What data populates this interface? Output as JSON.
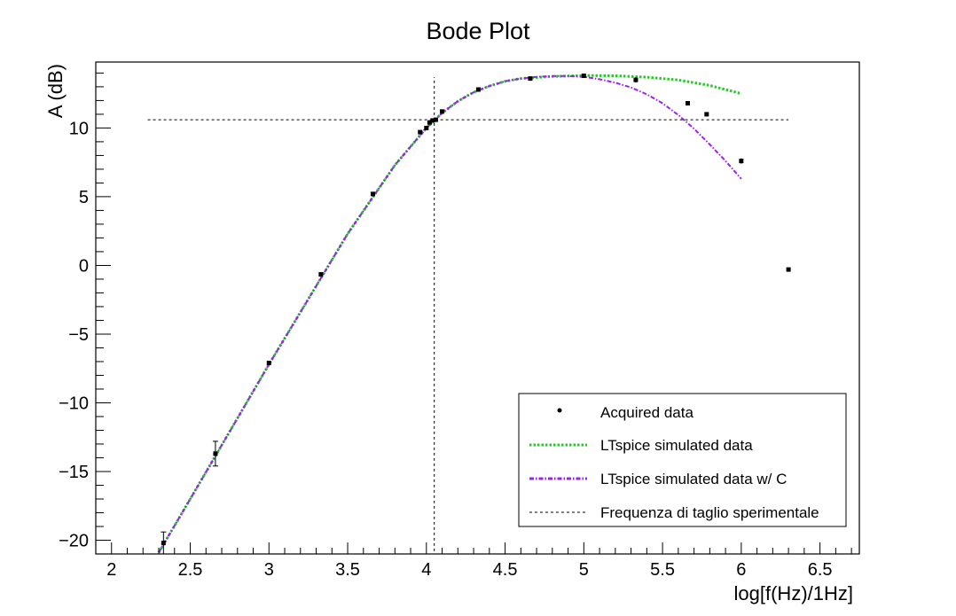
{
  "chart_data": {
    "type": "scatter",
    "title": "Bode Plot",
    "xlabel": "log[f(Hz)/1Hz]",
    "ylabel": "A (dB)",
    "xlim": [
      1.9,
      6.75
    ],
    "ylim": [
      -21,
      14.8
    ],
    "x_ticks": [
      2,
      2.5,
      3,
      3.5,
      4,
      4.5,
      5,
      5.5,
      6,
      6.5
    ],
    "x_tick_labels": [
      "2",
      "2.5",
      "3",
      "3.5",
      "4",
      "4.5",
      "5",
      "5.5",
      "6",
      "6.5"
    ],
    "y_ticks": [
      -20,
      -15,
      -10,
      -5,
      0,
      5,
      10
    ],
    "y_tick_labels": [
      "−20",
      "−15",
      "−10",
      "−5",
      "0",
      "5",
      "10"
    ],
    "grid": false,
    "legend_position": "bottom-right",
    "series": [
      {
        "name": "Acquired data",
        "kind": "points",
        "color": "#000000",
        "x": [
          2.33,
          2.66,
          3.0,
          3.33,
          3.66,
          3.96,
          4.0,
          4.02,
          4.04,
          4.06,
          4.1,
          4.33,
          4.66,
          5.0,
          5.33,
          5.66,
          5.78,
          6.0,
          6.3
        ],
        "y": [
          -20.2,
          -13.7,
          -7.1,
          -0.65,
          5.2,
          9.7,
          10.0,
          10.4,
          10.55,
          10.6,
          11.2,
          12.8,
          13.6,
          13.8,
          13.5,
          11.8,
          11.0,
          7.6,
          -0.3
        ],
        "yerr": [
          0.8,
          0.9,
          0.15,
          0.15,
          0.15,
          0.12,
          0.12,
          0.12,
          0.12,
          0.12,
          0.12,
          0.1,
          0.1,
          0.12,
          0.2,
          0.15,
          0.15,
          0.2,
          0.15
        ]
      },
      {
        "name": "LTspice simulated data",
        "kind": "line",
        "style": "dotted",
        "color": "#22cc22",
        "x": [
          2.3,
          2.5,
          3.0,
          3.5,
          3.8,
          4.0,
          4.1,
          4.2,
          4.3,
          4.4,
          4.5,
          4.6,
          4.8,
          5.0,
          5.2,
          5.4,
          5.6,
          5.8,
          6.0
        ],
        "y": [
          -20.9,
          -17.0,
          -7.2,
          2.3,
          7.3,
          10.0,
          11.1,
          11.95,
          12.6,
          13.05,
          13.4,
          13.6,
          13.75,
          13.82,
          13.8,
          13.7,
          13.5,
          13.1,
          12.5
        ]
      },
      {
        "name": "LTspice simulated data w/ C",
        "kind": "line",
        "style": "dashdot",
        "color": "#9922ee",
        "x": [
          2.3,
          2.5,
          3.0,
          3.5,
          3.8,
          4.0,
          4.1,
          4.2,
          4.3,
          4.4,
          4.5,
          4.6,
          4.7,
          4.8,
          4.9,
          5.0,
          5.1,
          5.2,
          5.3,
          5.4,
          5.5,
          5.6,
          5.7,
          5.8,
          5.9,
          6.0
        ],
        "y": [
          -20.9,
          -17.0,
          -7.2,
          2.3,
          7.3,
          10.0,
          11.1,
          11.95,
          12.6,
          13.05,
          13.4,
          13.6,
          13.72,
          13.78,
          13.78,
          13.72,
          13.55,
          13.3,
          12.95,
          12.45,
          11.8,
          10.95,
          9.95,
          8.8,
          7.6,
          6.3
        ]
      },
      {
        "name": "Frequenza di taglio sperimentale",
        "kind": "reference-lines",
        "style": "dashed",
        "color": "#000000",
        "hline_y": 10.6,
        "hline_x_range": [
          2.23,
          6.3
        ],
        "vline_x": 4.05,
        "vline_y_range": [
          -20.8,
          13.7
        ]
      }
    ]
  }
}
